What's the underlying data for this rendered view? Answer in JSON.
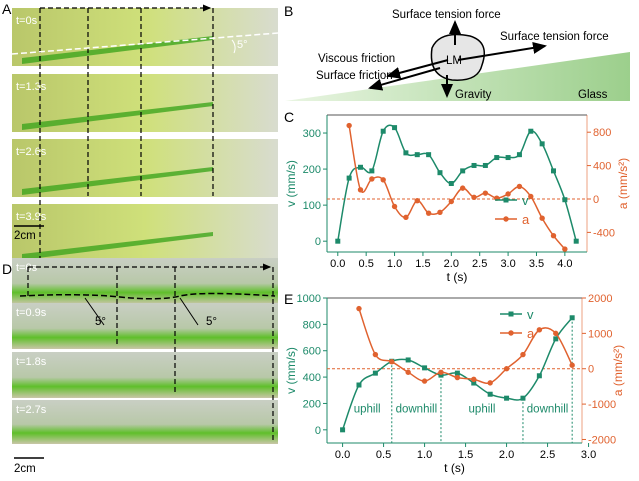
{
  "panels": {
    "A": {
      "letter": "A",
      "times": [
        "t=0s",
        "t=1.3s",
        "t=2.6s",
        "t=3.9s"
      ],
      "angle": "5°",
      "scale": "2cm"
    },
    "B": {
      "letter": "B",
      "labels": {
        "tension_top": "Surface tension force",
        "tension_right": "Surface tension force",
        "viscous": "Viscous friction",
        "surface": "Surface friction",
        "lm": "LM",
        "gravity": "Gravity",
        "glass": "Glass"
      }
    },
    "D": {
      "letter": "D",
      "times": [
        "t=0s",
        "t=0.9s",
        "t=1.8s",
        "t=2.7s"
      ],
      "angle1": "5°",
      "angle2": "5°",
      "scale": "2cm"
    },
    "C": {
      "letter": "C"
    },
    "E": {
      "letter": "E",
      "regions": [
        "uphill",
        "downhill",
        "uphill",
        "downhill"
      ]
    }
  },
  "colors": {
    "v": "#1d8a6a",
    "a": "#e0622f",
    "glass": "#a8d59a",
    "liquid": "#7ccf2a"
  },
  "chart_data": [
    {
      "id": "C",
      "type": "line",
      "xlabel": "t (s)",
      "ylabel": "v (mm/s)",
      "y2label": "a (mm/s²)",
      "xlim": [
        -0.19,
        4.39
      ],
      "ylim": [
        -30,
        350
      ],
      "y2lim": [
        -635,
        1006
      ],
      "xticks": [
        "0.0",
        "0.5",
        "1.0",
        "1.5",
        "2.0",
        "2.5",
        "3.0",
        "3.5",
        "4.0"
      ],
      "yticks": [
        "0",
        "100",
        "200",
        "300"
      ],
      "y2ticks": [
        "-400",
        "0",
        "400",
        "800"
      ],
      "legend": "bottom-right",
      "reference_line": {
        "axis": "y2",
        "value": 0
      },
      "series": [
        {
          "name": "v",
          "axis": "y",
          "marker": "square",
          "x": [
            0,
            0.2,
            0.4,
            0.6,
            0.8,
            1.0,
            1.2,
            1.4,
            1.6,
            1.8,
            2.0,
            2.2,
            2.4,
            2.6,
            2.8,
            3.0,
            3.2,
            3.4,
            3.6,
            3.8,
            4.0,
            4.2
          ],
          "y": [
            0,
            175,
            205,
            195,
            305,
            315,
            245,
            240,
            240,
            190,
            160,
            195,
            210,
            210,
            232,
            232,
            240,
            305,
            270,
            195,
            115,
            0
          ]
        },
        {
          "name": "a",
          "axis": "y2",
          "marker": "circle",
          "x": [
            0.2,
            0.4,
            0.6,
            0.8,
            1.0,
            1.2,
            1.4,
            1.6,
            1.8,
            2.0,
            2.2,
            2.4,
            2.6,
            2.8,
            3.0,
            3.2,
            3.4,
            3.6,
            3.8,
            4.0
          ],
          "y": [
            880,
            110,
            240,
            230,
            -90,
            -220,
            -20,
            -170,
            -160,
            -30,
            130,
            20,
            70,
            10,
            60,
            150,
            30,
            -230,
            -440,
            -600
          ]
        }
      ]
    },
    {
      "id": "E",
      "type": "line",
      "xlabel": "t (s)",
      "ylabel": "v (mm/s)",
      "y2label": "a (mm/s²)",
      "xlim": [
        -0.19,
        2.92
      ],
      "ylim": [
        -100,
        1000
      ],
      "y2lim": [
        -2100,
        2000
      ],
      "xticks": [
        "0.0",
        "0.5",
        "1.0",
        "1.5",
        "2.0",
        "2.5",
        "3.0"
      ],
      "yticks": [
        "0",
        "200",
        "400",
        "600",
        "800",
        "1000"
      ],
      "y2ticks": [
        "-2000",
        "-1000",
        "0",
        "1000",
        "2000"
      ],
      "legend": "top-right",
      "reference_line": {
        "axis": "y2",
        "value": 0
      },
      "boundaries": [
        0.6,
        1.2,
        2.2,
        2.8
      ],
      "series": [
        {
          "name": "v",
          "axis": "y",
          "marker": "square",
          "x": [
            0,
            0.2,
            0.4,
            0.6,
            0.8,
            1.0,
            1.2,
            1.4,
            1.6,
            1.8,
            2.0,
            2.2,
            2.4,
            2.6,
            2.8
          ],
          "y": [
            0,
            340,
            430,
            520,
            530,
            470,
            415,
            430,
            355,
            270,
            240,
            240,
            410,
            690,
            850
          ]
        },
        {
          "name": "a",
          "axis": "y2",
          "marker": "circle",
          "x": [
            0.2,
            0.4,
            0.6,
            0.8,
            1.0,
            1.2,
            1.4,
            1.6,
            1.8,
            2.0,
            2.2,
            2.4,
            2.6,
            2.8
          ],
          "y": [
            1700,
            400,
            200,
            -100,
            -350,
            -100,
            -250,
            -300,
            -400,
            0,
            400,
            1100,
            1000,
            100
          ]
        }
      ]
    }
  ]
}
